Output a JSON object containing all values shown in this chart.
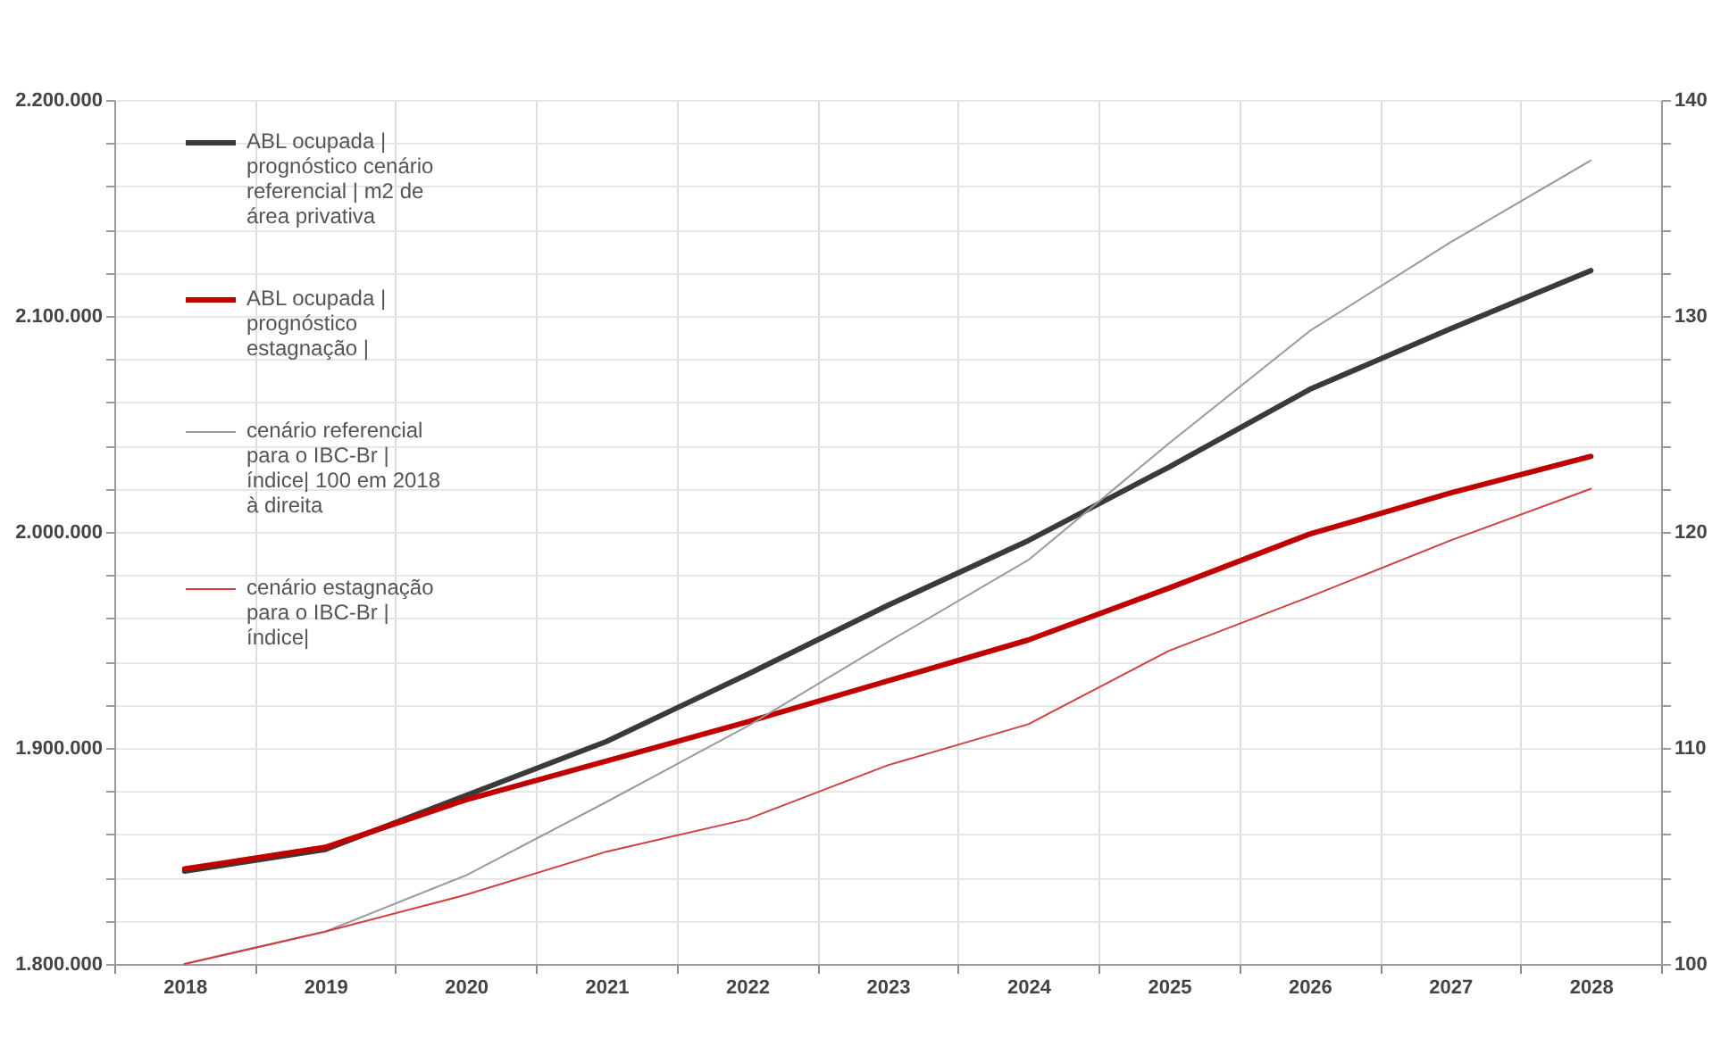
{
  "chart_data": {
    "type": "line",
    "categories": [
      "2018",
      "2019",
      "2020",
      "2021",
      "2022",
      "2023",
      "2024",
      "2025",
      "2026",
      "2027",
      "2028"
    ],
    "series": [
      {
        "name": "ABL ocupada | prognóstico cenário referencial | m2 de área privativa",
        "color": "#3a3a3a",
        "axis": "y",
        "values": [
          1843000,
          1853000,
          1878000,
          1903000,
          1934000,
          1966000,
          1996000,
          2030000,
          2066000,
          2094000,
          2121000
        ]
      },
      {
        "name": "ABL ocupada | prognóstico estagnação |",
        "color": "#c00000",
        "axis": "y",
        "values": [
          1844000,
          1854000,
          1876000,
          1894000,
          1912000,
          1931000,
          1950000,
          1974000,
          1999000,
          2018000,
          2035000
        ]
      },
      {
        "name": "cenário referencial para o IBC-Br | índice| 100 em 2018 à direita",
        "color": "#9a9a9a",
        "axis": "y2",
        "values": [
          100,
          101.5,
          104.1,
          107.5,
          111.0,
          114.9,
          118.7,
          124.1,
          129.3,
          133.4,
          137.2
        ]
      },
      {
        "name": "cenário estagnação para o IBC-Br | índice|",
        "color": "#d04040",
        "axis": "y2",
        "values": [
          100,
          101.5,
          103.2,
          105.2,
          106.7,
          109.2,
          111.1,
          114.5,
          117.0,
          119.6,
          122.0
        ]
      }
    ],
    "ylim": [
      1800000,
      2200000
    ],
    "yticks": [
      {
        "value": 1800000,
        "label": "1.800.000"
      },
      {
        "value": 1820000,
        "label": null
      },
      {
        "value": 1840000,
        "label": null
      },
      {
        "value": 1860000,
        "label": null
      },
      {
        "value": 1880000,
        "label": null
      },
      {
        "value": 1900000,
        "label": "1.900.000"
      },
      {
        "value": 1920000,
        "label": null
      },
      {
        "value": 1940000,
        "label": null
      },
      {
        "value": 1960000,
        "label": null
      },
      {
        "value": 1980000,
        "label": null
      },
      {
        "value": 2000000,
        "label": "2.000.000"
      },
      {
        "value": 2020000,
        "label": null
      },
      {
        "value": 2040000,
        "label": null
      },
      {
        "value": 2060000,
        "label": null
      },
      {
        "value": 2080000,
        "label": null
      },
      {
        "value": 2100000,
        "label": "2.100.000"
      },
      {
        "value": 2120000,
        "label": null
      },
      {
        "value": 2140000,
        "label": null
      },
      {
        "value": 2160000,
        "label": null
      },
      {
        "value": 2180000,
        "label": null
      },
      {
        "value": 2200000,
        "label": "2.200.000"
      }
    ],
    "y2lim": [
      100,
      140
    ],
    "y2ticks": [
      100,
      {
        "value": 102,
        "label": null
      },
      {
        "value": 104,
        "label": null
      },
      {
        "value": 106,
        "label": null
      },
      {
        "value": 108,
        "label": null
      },
      110,
      {
        "value": 112,
        "label": null
      },
      {
        "value": 114,
        "label": null
      },
      {
        "value": 116,
        "label": null
      },
      {
        "value": 118,
        "label": null
      },
      120,
      {
        "value": 122,
        "label": null
      },
      {
        "value": 124,
        "label": null
      },
      {
        "value": 126,
        "label": null
      },
      {
        "value": 128,
        "label": null
      },
      130,
      {
        "value": 132,
        "label": null
      },
      {
        "value": 134,
        "label": null
      },
      {
        "value": 136,
        "label": null
      },
      {
        "value": 138,
        "label": null
      },
      140
    ],
    "grid": true,
    "legend": "top left"
  }
}
